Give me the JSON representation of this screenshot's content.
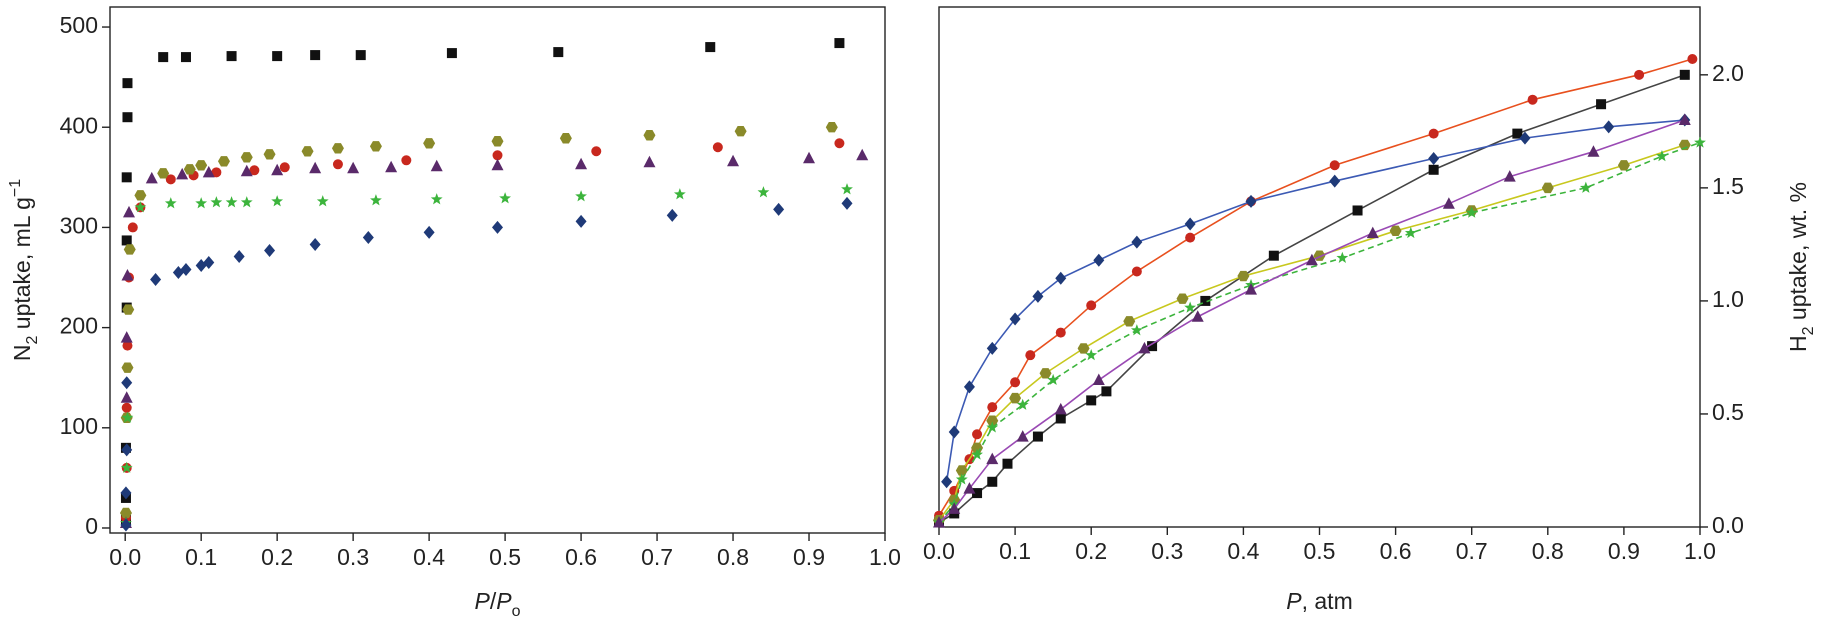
{
  "chart_data": [
    {
      "type": "scatter",
      "x_label": [
        "P",
        "/",
        "P",
        "o"
      ],
      "y_label": [
        "N",
        "2",
        " uptake, mL g",
        "−1"
      ],
      "y_axis_side": "left",
      "xlim": [
        -0.02,
        1.0
      ],
      "ylim": [
        -5,
        520
      ],
      "xticks": [
        {
          "value": 0,
          "label": "0.0"
        },
        {
          "value": 0.1,
          "label": "0.1"
        },
        {
          "value": 0.2,
          "label": "0.2"
        },
        {
          "value": 0.3,
          "label": "0.3"
        },
        {
          "value": 0.4,
          "label": "0.4"
        },
        {
          "value": 0.5,
          "label": "0.5"
        },
        {
          "value": 0.6,
          "label": "0.6"
        },
        {
          "value": 0.7,
          "label": "0.7"
        },
        {
          "value": 0.8,
          "label": "0.8"
        },
        {
          "value": 0.9,
          "label": "0.9"
        },
        {
          "value": 1.0,
          "label": "1.0"
        }
      ],
      "yticks": [
        0,
        100,
        200,
        300,
        400,
        500
      ],
      "series": [
        {
          "color": "#111111",
          "marker": "square",
          "x": [
            0.001,
            0.001,
            0.001,
            0.002,
            0.002,
            0.002,
            0.003,
            0.003,
            0.05,
            0.08,
            0.14,
            0.2,
            0.25,
            0.31,
            0.43,
            0.57,
            0.77,
            0.94
          ],
          "values": [
            8,
            30,
            80,
            220,
            287,
            350,
            410,
            444,
            470,
            470,
            471,
            471,
            472,
            472,
            474,
            475,
            480,
            484
          ]
        },
        {
          "color": "#c8281e",
          "marker": "circle",
          "x": [
            0.001,
            0.002,
            0.002,
            0.003,
            0.005,
            0.01,
            0.02,
            0.06,
            0.09,
            0.12,
            0.17,
            0.21,
            0.28,
            0.37,
            0.49,
            0.62,
            0.78,
            0.94
          ],
          "values": [
            10,
            60,
            120,
            182,
            250,
            300,
            320,
            348,
            352,
            355,
            357,
            360,
            363,
            367,
            372,
            376,
            380,
            384
          ]
        },
        {
          "color": "#8a8a2a",
          "marker": "hexagon",
          "x": [
            0.001,
            0.002,
            0.003,
            0.004,
            0.006,
            0.02,
            0.05,
            0.085,
            0.1,
            0.13,
            0.16,
            0.19,
            0.24,
            0.28,
            0.33,
            0.4,
            0.49,
            0.58,
            0.69,
            0.81,
            0.93
          ],
          "values": [
            15,
            110,
            160,
            218,
            278,
            332,
            354,
            358,
            362,
            366,
            370,
            373,
            376,
            379,
            381,
            384,
            386,
            389,
            392,
            396,
            400
          ]
        },
        {
          "color": "#5a2a6a",
          "marker": "triangle",
          "x": [
            0.001,
            0.002,
            0.002,
            0.003,
            0.005,
            0.035,
            0.075,
            0.11,
            0.16,
            0.2,
            0.25,
            0.3,
            0.35,
            0.41,
            0.49,
            0.6,
            0.69,
            0.8,
            0.9,
            0.97
          ],
          "values": [
            5,
            130,
            190,
            252,
            315,
            349,
            353,
            355,
            356,
            357,
            359,
            359,
            360,
            361,
            362,
            363,
            365,
            366,
            369,
            372
          ]
        },
        {
          "color": "#3cb43c",
          "marker": "star",
          "x": [
            0.001,
            0.002,
            0.003,
            0.02,
            0.06,
            0.1,
            0.12,
            0.14,
            0.16,
            0.2,
            0.26,
            0.33,
            0.41,
            0.5,
            0.6,
            0.73,
            0.84,
            0.95
          ],
          "values": [
            5,
            60,
            110,
            320,
            324,
            324,
            325,
            325,
            325,
            326,
            326,
            327,
            328,
            329,
            331,
            333,
            335,
            338
          ]
        },
        {
          "color": "#1f3a78",
          "marker": "diamond",
          "x": [
            0.001,
            0.001,
            0.002,
            0.002,
            0.04,
            0.07,
            0.08,
            0.1,
            0.11,
            0.15,
            0.19,
            0.25,
            0.32,
            0.4,
            0.49,
            0.6,
            0.72,
            0.86,
            0.95
          ],
          "values": [
            3,
            35,
            78,
            145,
            248,
            255,
            258,
            262,
            265,
            271,
            277,
            283,
            290,
            295,
            300,
            306,
            312,
            318,
            324
          ]
        }
      ]
    },
    {
      "type": "line",
      "x_label": [
        "P",
        ", atm"
      ],
      "y_label": [
        "H",
        "2",
        " uptake, wt. %"
      ],
      "y_axis_side": "right",
      "xlim": [
        0,
        1.0
      ],
      "ylim": [
        0,
        2.3
      ],
      "xticks": [
        {
          "value": 0,
          "label": "0.0"
        },
        {
          "value": 0.1,
          "label": "0.1"
        },
        {
          "value": 0.2,
          "label": "0.2"
        },
        {
          "value": 0.3,
          "label": "0.3"
        },
        {
          "value": 0.4,
          "label": "0.4"
        },
        {
          "value": 0.5,
          "label": "0.5"
        },
        {
          "value": 0.6,
          "label": "0.6"
        },
        {
          "value": 0.7,
          "label": "0.7"
        },
        {
          "value": 0.8,
          "label": "0.8"
        },
        {
          "value": 0.9,
          "label": "0.9"
        },
        {
          "value": 1.0,
          "label": "1.0"
        }
      ],
      "yticks": [
        {
          "value": 0,
          "label": "0.0"
        },
        {
          "value": 0.5,
          "label": "0.5"
        },
        {
          "value": 1.0,
          "label": "1.0"
        },
        {
          "value": 1.5,
          "label": "1.5"
        },
        {
          "value": 2.0,
          "label": "2.0"
        }
      ],
      "series": [
        {
          "color": "#111111",
          "line_color": "#444444",
          "marker": "square",
          "x": [
            0.0,
            0.02,
            0.05,
            0.07,
            0.09,
            0.13,
            0.16,
            0.2,
            0.22,
            0.28,
            0.35,
            0.44,
            0.55,
            0.65,
            0.76,
            0.87,
            0.98
          ],
          "values": [
            0.02,
            0.06,
            0.15,
            0.2,
            0.28,
            0.4,
            0.48,
            0.56,
            0.6,
            0.8,
            1.0,
            1.2,
            1.4,
            1.58,
            1.74,
            1.87,
            2.0
          ]
        },
        {
          "color": "#c8281e",
          "line_color": "#e8501e",
          "marker": "circle",
          "x": [
            0.0,
            0.02,
            0.04,
            0.05,
            0.07,
            0.1,
            0.12,
            0.16,
            0.2,
            0.26,
            0.33,
            0.41,
            0.52,
            0.65,
            0.78,
            0.92,
            0.99
          ],
          "values": [
            0.05,
            0.16,
            0.3,
            0.41,
            0.53,
            0.64,
            0.76,
            0.86,
            0.98,
            1.13,
            1.28,
            1.44,
            1.6,
            1.74,
            1.89,
            2.0,
            2.07
          ]
        },
        {
          "color": "#1f3a78",
          "line_color": "#3c5ab4",
          "marker": "diamond",
          "x": [
            0.01,
            0.02,
            0.04,
            0.07,
            0.1,
            0.13,
            0.16,
            0.21,
            0.26,
            0.33,
            0.41,
            0.52,
            0.65,
            0.77,
            0.88,
            0.98
          ],
          "values": [
            0.2,
            0.42,
            0.62,
            0.79,
            0.92,
            1.02,
            1.1,
            1.18,
            1.26,
            1.34,
            1.44,
            1.53,
            1.63,
            1.72,
            1.77,
            1.8
          ]
        },
        {
          "color": "#8a8a2a",
          "line_color": "#c8c81e",
          "marker": "hexagon",
          "x": [
            0.0,
            0.02,
            0.03,
            0.05,
            0.07,
            0.1,
            0.14,
            0.19,
            0.25,
            0.32,
            0.4,
            0.5,
            0.6,
            0.7,
            0.8,
            0.9,
            0.98
          ],
          "values": [
            0.03,
            0.12,
            0.25,
            0.35,
            0.47,
            0.57,
            0.68,
            0.79,
            0.91,
            1.01,
            1.11,
            1.2,
            1.31,
            1.4,
            1.5,
            1.6,
            1.69
          ]
        },
        {
          "color": "#3cb43c",
          "line_color": "#3cb43c",
          "marker": "star",
          "x": [
            0.0,
            0.02,
            0.03,
            0.05,
            0.07,
            0.11,
            0.15,
            0.2,
            0.26,
            0.33,
            0.41,
            0.53,
            0.62,
            0.7,
            0.85,
            0.95,
            1.0
          ],
          "values": [
            0.02,
            0.1,
            0.21,
            0.32,
            0.44,
            0.54,
            0.65,
            0.76,
            0.87,
            0.97,
            1.07,
            1.19,
            1.3,
            1.39,
            1.5,
            1.64,
            1.7
          ]
        },
        {
          "color": "#5a2a6a",
          "line_color": "#9a4ab4",
          "marker": "triangle",
          "x": [
            0.0,
            0.02,
            0.04,
            0.07,
            0.11,
            0.16,
            0.21,
            0.27,
            0.34,
            0.41,
            0.49,
            0.57,
            0.67,
            0.75,
            0.86,
            0.98
          ],
          "values": [
            0.02,
            0.08,
            0.17,
            0.3,
            0.4,
            0.52,
            0.65,
            0.79,
            0.93,
            1.05,
            1.18,
            1.3,
            1.43,
            1.55,
            1.66,
            1.8
          ]
        }
      ]
    }
  ]
}
